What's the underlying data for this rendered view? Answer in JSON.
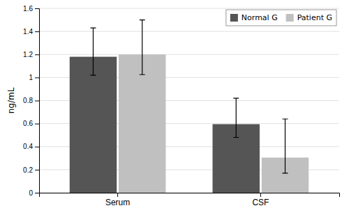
{
  "chart_data": {
    "type": "bar",
    "categories": [
      "Serum",
      "CSF"
    ],
    "series": [
      {
        "name": "Normal G",
        "color": "#555555",
        "values": [
          1.18,
          0.595
        ],
        "err_lower": [
          0.16,
          0.115
        ],
        "err_upper": [
          0.25,
          0.225
        ]
      },
      {
        "name": "Patient G",
        "color": "#c0c0c0",
        "values": [
          1.2,
          0.305
        ],
        "err_lower": [
          0.175,
          0.135
        ],
        "err_upper": [
          0.3,
          0.335
        ]
      }
    ],
    "ylabel": "ng/mL",
    "ylim": [
      0,
      1.6
    ],
    "yticks": [
      0,
      0.2,
      0.4,
      0.6,
      0.8,
      1,
      1.2,
      1.4,
      1.6
    ],
    "grid": true,
    "legend": "upper right"
  }
}
